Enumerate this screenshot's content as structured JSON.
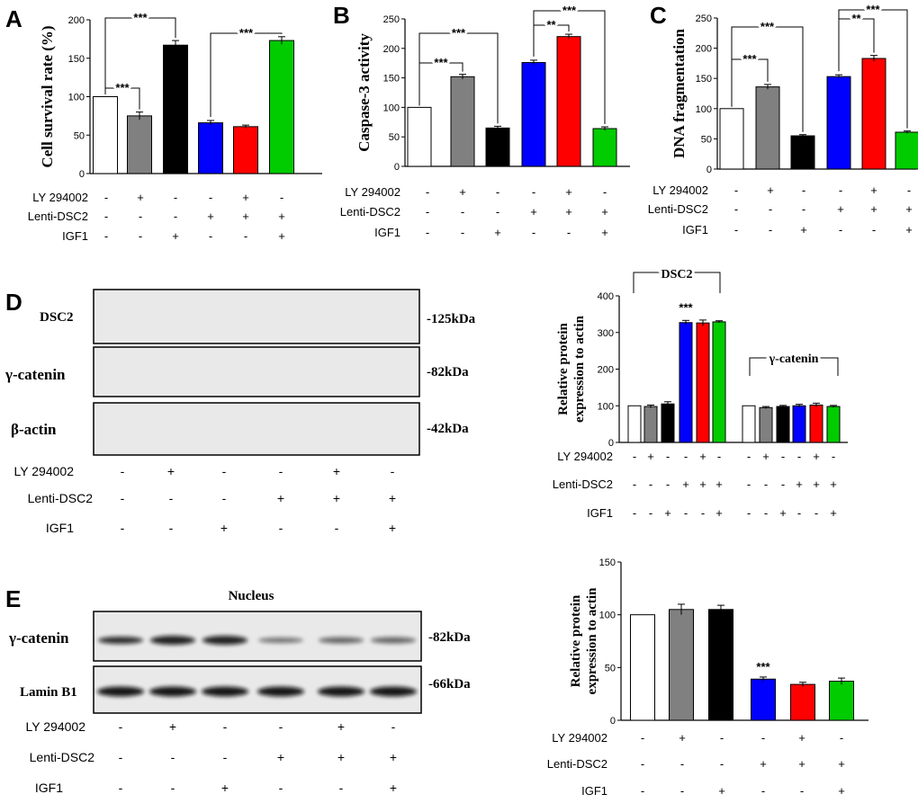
{
  "colors": {
    "white": "#ffffff",
    "gray": "#808080",
    "black": "#000000",
    "blue": "#0000ff",
    "red": "#ff0000",
    "green": "#00cc00"
  },
  "treatment_labels": [
    "LY 294002",
    "Lenti-DSC2",
    "IGF1"
  ],
  "treatment_signs": {
    "ly": [
      "-",
      "+",
      "-",
      "-",
      "+",
      "-"
    ],
    "lenti": [
      "-",
      "-",
      "-",
      "+",
      "+",
      "+"
    ],
    "igf": [
      "-",
      "-",
      "+",
      "-",
      "-",
      "+"
    ]
  },
  "chart_data": [
    {
      "panel": "A",
      "type": "bar",
      "title": "",
      "xlabel": "",
      "ylabel": "Cell survival rate (%)",
      "ylim": [
        0,
        200
      ],
      "yticks": [
        0,
        50,
        100,
        150,
        200
      ],
      "values": [
        100,
        75,
        167,
        66,
        61,
        173
      ],
      "errors": [
        0,
        5,
        6,
        3,
        2,
        5
      ],
      "colors": [
        "white",
        "gray",
        "black",
        "blue",
        "red",
        "green"
      ],
      "significance": [
        {
          "from": 0,
          "to": 1,
          "label": "***"
        },
        {
          "from": 0,
          "to": 2,
          "label": "***"
        },
        {
          "from": 3,
          "to": 5,
          "label": "***"
        }
      ]
    },
    {
      "panel": "B",
      "type": "bar",
      "title": "",
      "xlabel": "",
      "ylabel": "Caspase-3 activity",
      "ylim": [
        0,
        250
      ],
      "yticks": [
        0,
        50,
        100,
        150,
        200,
        250
      ],
      "values": [
        100,
        152,
        65,
        176,
        220,
        64
      ],
      "errors": [
        0,
        4,
        3,
        4,
        4,
        3
      ],
      "colors": [
        "white",
        "gray",
        "black",
        "blue",
        "red",
        "green"
      ],
      "significance": [
        {
          "from": 0,
          "to": 1,
          "label": "***"
        },
        {
          "from": 0,
          "to": 2,
          "label": "***"
        },
        {
          "from": 3,
          "to": 4,
          "label": "**"
        },
        {
          "from": 3,
          "to": 5,
          "label": "***"
        }
      ]
    },
    {
      "panel": "C",
      "type": "bar",
      "title": "",
      "xlabel": "",
      "ylabel": "DNA fragmentation",
      "ylim": [
        0,
        250
      ],
      "yticks": [
        0,
        50,
        100,
        150,
        200,
        250
      ],
      "values": [
        100,
        136,
        55,
        153,
        183,
        61
      ],
      "errors": [
        0,
        4,
        2,
        3,
        5,
        2
      ],
      "colors": [
        "white",
        "gray",
        "black",
        "blue",
        "red",
        "green"
      ],
      "significance": [
        {
          "from": 0,
          "to": 1,
          "label": "***"
        },
        {
          "from": 0,
          "to": 2,
          "label": "***"
        },
        {
          "from": 3,
          "to": 4,
          "label": "**"
        },
        {
          "from": 3,
          "to": 5,
          "label": "***"
        }
      ]
    },
    {
      "panel": "D",
      "type": "bar",
      "title": "",
      "xlabel": "",
      "ylabel": "Relative protein expression to actin",
      "ylim": [
        0,
        400
      ],
      "yticks": [
        0,
        100,
        200,
        300,
        400
      ],
      "groups": [
        "DSC2",
        "γ-catenin"
      ],
      "values": [
        [
          100,
          98,
          105,
          327,
          326,
          329
        ],
        [
          100,
          95,
          98,
          100,
          102,
          98
        ]
      ],
      "errors": [
        [
          0,
          4,
          6,
          6,
          8,
          3
        ],
        [
          0,
          3,
          3,
          4,
          5,
          3
        ]
      ],
      "colors": [
        "white",
        "gray",
        "black",
        "blue",
        "red",
        "green"
      ],
      "significance": [
        {
          "group": 0,
          "bar": 3,
          "label": "***"
        }
      ]
    },
    {
      "panel": "E",
      "type": "bar",
      "title": "",
      "xlabel": "",
      "ylabel": "Relative protein expression to actin",
      "ylim": [
        0,
        150
      ],
      "yticks": [
        0,
        50,
        100,
        150
      ],
      "values": [
        100,
        105,
        105,
        39,
        34,
        37
      ],
      "errors": [
        0,
        5,
        4,
        2,
        2,
        3
      ],
      "colors": [
        "white",
        "gray",
        "black",
        "blue",
        "red",
        "green"
      ],
      "significance": [
        {
          "bar": 3,
          "label": "***"
        }
      ]
    }
  ],
  "blots": {
    "D": {
      "rows": [
        {
          "label": "DSC2",
          "kda": "-125kDa"
        },
        {
          "label": "γ-catenin",
          "kda": "-82kDa"
        },
        {
          "label": "β-actin",
          "kda": "-42kDa"
        }
      ]
    },
    "E": {
      "title": "Nucleus",
      "rows": [
        {
          "label": "γ-catenin",
          "kda": "-82kDa"
        },
        {
          "label": "Lamin B1",
          "kda": "-66kDa"
        }
      ]
    }
  }
}
